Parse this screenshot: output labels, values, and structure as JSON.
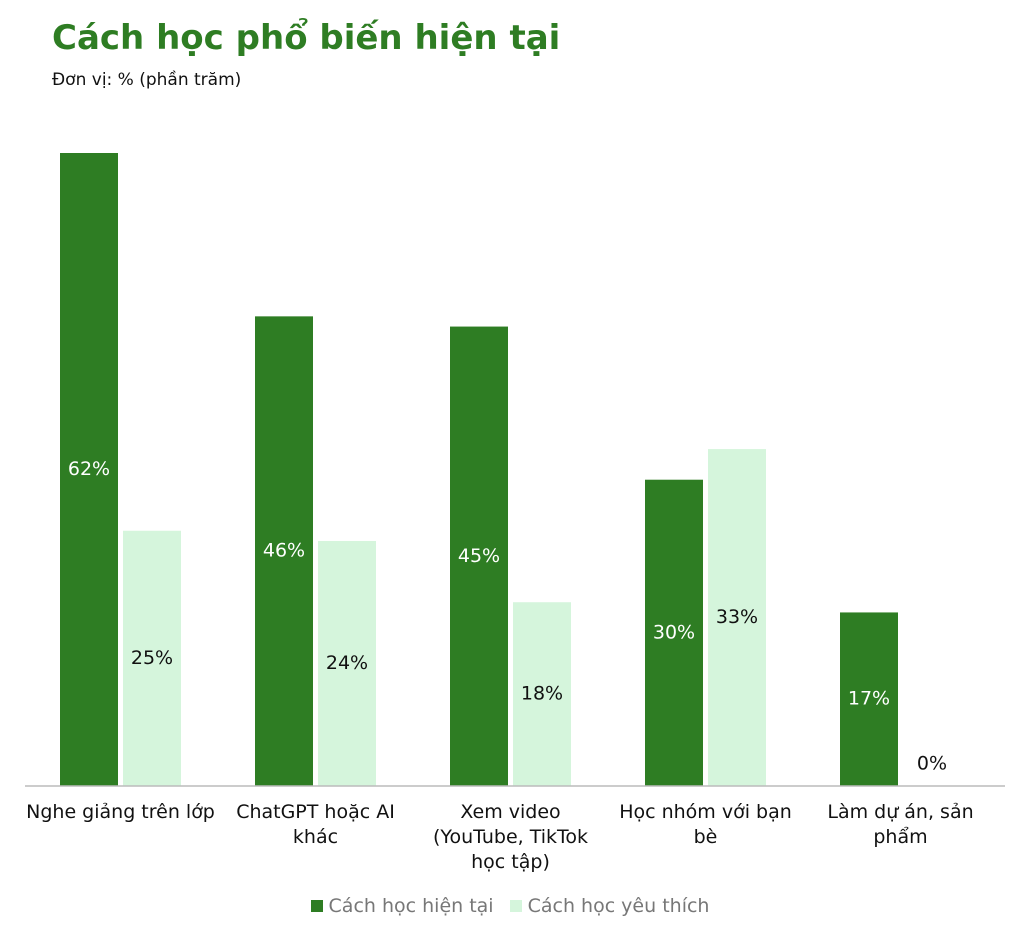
{
  "chart_data": {
    "type": "bar",
    "title": "Cách học phổ biến hiện tại",
    "subtitle": "Đơn vị: % (phần trăm)",
    "categories": [
      "Nghe giảng trên lớp",
      "ChatGPT hoặc AI khác",
      "Xem video (YouTube, TikTok học tập)",
      "Học nhóm với bạn bè",
      "Làm dự án, sản phẩm"
    ],
    "series": [
      {
        "name": "Cách học hiện tại",
        "color": "#2e7d23",
        "label_color": "#ffffff",
        "values": [
          62,
          46,
          45,
          30,
          17
        ],
        "value_labels": [
          "62%",
          "46%",
          "45%",
          "30%",
          "17%"
        ]
      },
      {
        "name": "Cách học yêu thích",
        "color": "#d5f5dc",
        "label_color": "#111111",
        "values": [
          25,
          24,
          18,
          33,
          0
        ],
        "value_labels": [
          "25%",
          "24%",
          "18%",
          "33%",
          "0%"
        ]
      }
    ],
    "grid": false
  }
}
